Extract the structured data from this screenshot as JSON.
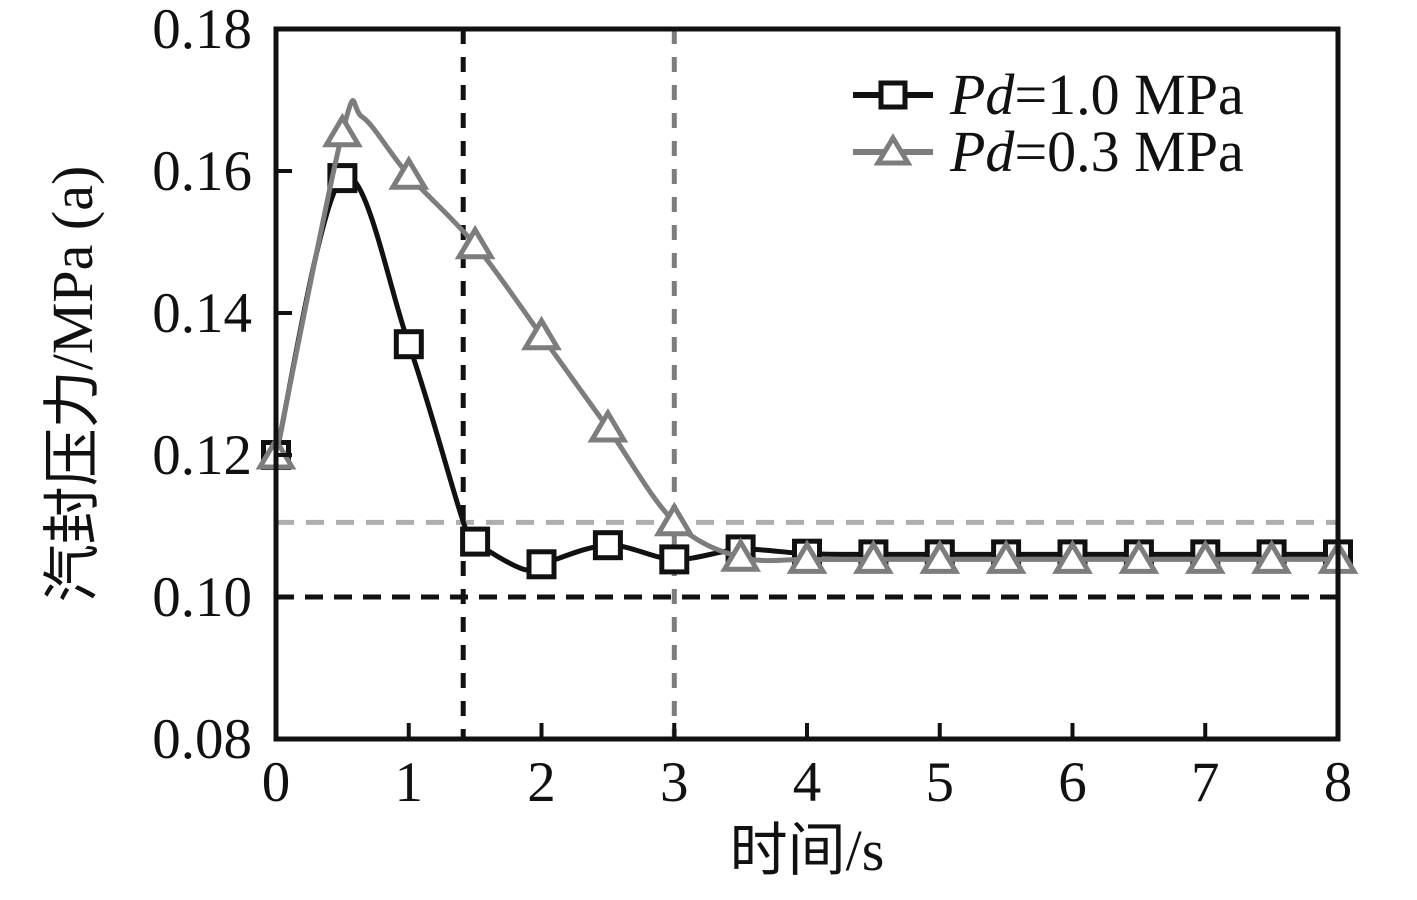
{
  "figure": {
    "background": "#ffffff",
    "frame_color": "#111111"
  },
  "chart_data": {
    "type": "line",
    "title": "",
    "xlabel": "时间/s",
    "ylabel": "汽封压力/MPa (a)",
    "xlim": [
      0,
      8
    ],
    "ylim": [
      0.08,
      0.18
    ],
    "xticks": [
      0,
      1,
      2,
      3,
      4,
      5,
      6,
      7,
      8
    ],
    "yticks": [
      0.08,
      0.1,
      0.12,
      0.14,
      0.16,
      0.18
    ],
    "grid": false,
    "legend_position": "top-right",
    "series": [
      {
        "name": "Pd=1.0 MPa",
        "name_italic": "Pd",
        "name_rest": "=1.0 MPa",
        "color": "#111111",
        "marker": "square",
        "x": [
          0,
          0.5,
          1,
          1.5,
          2,
          2.5,
          3,
          3.5,
          4,
          4.5,
          5,
          5.5,
          6,
          6.5,
          7,
          7.5,
          8
        ],
        "y": [
          0.12,
          0.159,
          0.1356,
          0.1078,
          0.1046,
          0.1073,
          0.1053,
          0.1067,
          0.1061,
          0.106,
          0.106,
          0.106,
          0.106,
          0.106,
          0.106,
          0.106,
          0.106
        ],
        "curve": [
          [
            0,
            0.12
          ],
          [
            0.5,
            0.159
          ],
          [
            1,
            0.1356
          ],
          [
            1.41,
            0.1106
          ],
          [
            1.5,
            0.1078
          ],
          [
            1.85,
            0.104
          ],
          [
            2,
            0.1046
          ],
          [
            2.5,
            0.1073
          ],
          [
            3,
            0.1053
          ],
          [
            3.5,
            0.1067
          ],
          [
            4,
            0.1061
          ],
          [
            4.5,
            0.106
          ],
          [
            5,
            0.106
          ],
          [
            5.5,
            0.106
          ],
          [
            6,
            0.106
          ],
          [
            6.5,
            0.106
          ],
          [
            7,
            0.106
          ],
          [
            7.5,
            0.106
          ],
          [
            8,
            0.106
          ]
        ]
      },
      {
        "name": "Pd=0.3 MPa",
        "name_italic": "Pd",
        "name_rest": "=0.3 MPa",
        "color": "#7d7d7d",
        "marker": "triangle",
        "x": [
          0,
          0.5,
          1,
          1.5,
          2,
          2.5,
          3,
          3.5,
          4,
          4.5,
          5,
          5.5,
          6,
          6.5,
          7,
          7.5,
          8
        ],
        "y": [
          0.12,
          0.1654,
          0.1594,
          0.1496,
          0.1368,
          0.1238,
          0.1106,
          0.1056,
          0.1053,
          0.1053,
          0.1053,
          0.1053,
          0.1053,
          0.1053,
          0.1053,
          0.1053,
          0.1053
        ],
        "curve": [
          [
            0,
            0.12
          ],
          [
            0.5,
            0.1654
          ],
          [
            0.65,
            0.1676
          ],
          [
            1,
            0.1594
          ],
          [
            1.5,
            0.1496
          ],
          [
            2,
            0.1368
          ],
          [
            2.5,
            0.1238
          ],
          [
            3,
            0.1106
          ],
          [
            3.5,
            0.1056
          ],
          [
            4,
            0.1053
          ],
          [
            4.5,
            0.1053
          ],
          [
            5,
            0.1053
          ],
          [
            5.5,
            0.1053
          ],
          [
            6,
            0.1053
          ],
          [
            6.5,
            0.1053
          ],
          [
            7,
            0.1053
          ],
          [
            7.5,
            0.1053
          ],
          [
            8,
            0.1053
          ]
        ]
      }
    ],
    "reference_lines": [
      {
        "orientation": "horizontal",
        "value": 0.1105,
        "color": "#aeaeae",
        "style": "dashed",
        "width": 5,
        "dash": "18 12"
      },
      {
        "orientation": "horizontal",
        "value": 0.1,
        "color": "#111111",
        "style": "dashed",
        "width": 5,
        "dash": "18 11"
      },
      {
        "orientation": "vertical",
        "value": 1.41,
        "color": "#111111",
        "style": "dashed",
        "width": 5,
        "dash": "15 13"
      },
      {
        "orientation": "vertical",
        "value": 3.0,
        "color": "#7d7d7d",
        "style": "dashed",
        "width": 5,
        "dash": "15 13"
      }
    ]
  }
}
